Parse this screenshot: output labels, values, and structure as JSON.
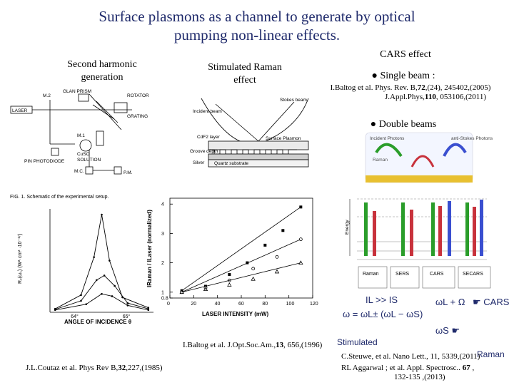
{
  "title": {
    "line1": "Surface  plasmons as a channel to  generate by optical",
    "line2": "pumping non-linear  effects."
  },
  "sections": {
    "shg_line1": "Second harmonic",
    "shg_line2": "generation",
    "raman_line1": "Stimulated Raman",
    "raman_line2": "effect",
    "cars": "CARS  effect",
    "single_beam": "● Single beam :",
    "double_beams": "● Double beams"
  },
  "refs": {
    "cars_ref_a": "I.Baltog et al. Phys. Rev. B,",
    "cars_ref_vol1": "72",
    "cars_ref_b": ",(24), 245402,(2005)",
    "cars_ref_c": "J.Appl.Phys,",
    "cars_ref_vol2": "110",
    "cars_ref_d": ", 053106,(2011)",
    "raman_ref_a": "I.Baltog et al. J.Opt.Soc.Am.,",
    "raman_ref_vol": "13",
    "raman_ref_b": ", 656,(1996)",
    "shg_ref_a": "J.L.Coutaz et al. Phys Rev B,",
    "shg_ref_vol": "32",
    "shg_ref_b": ",227,(1985)",
    "steuwe": "C.Steuwe, et al. Nano Lett., 11, 5339,(2011)",
    "aggarwal_a": "RL Aggarwal ; et al. Appl. Spectrosc.. ",
    "aggarwal_vol": "67",
    "aggarwal_b": " ,",
    "aggarwal_c": "132-135  ,(2013)"
  },
  "equations": {
    "il_is": "IL >> IS",
    "omega": "ω = ωL± (ωL − ωS)",
    "wl_plus": "ωL + Ω",
    "cars_label": "CARS",
    "ws": "ωS",
    "stimulated": "Stimulated",
    "raman": "Raman"
  },
  "schematic": {
    "glan_prism": "GLAN PRISM",
    "rotator": "ROTATOR",
    "grating": "GRATING",
    "laser": "LASER",
    "m2": "M.2",
    "m1": "M.1",
    "cuso4_a": "CuSO",
    "cuso4_b": "SOLUTION",
    "pin": "PIN PHOTODIODE",
    "mc": "M.C.",
    "pm": "P.M.",
    "caption": "FIG. 1.  Schematic of the experimental setup."
  },
  "raman_diagram": {
    "stokes": "Stokes beam",
    "incident": "Incident beam",
    "cdf2": "CdF2 layer",
    "surface_plasmon": "Surface Plasmon",
    "groove": "Groove depth",
    "silver": "Silver",
    "quartz": "Quartz substrate"
  },
  "energy_diagram": {
    "incident_photons": "Incident Photons",
    "anti_stokes": "anti-Stokes Photons",
    "raman_label": "Raman",
    "energy": "Energy",
    "sers": "SERS",
    "cars": "CARS",
    "secars": "SECARS",
    "raman_bottom": "Raman"
  },
  "chart_data": [
    {
      "type": "line",
      "title": "",
      "xlabel": "ANGLE OF INCIDENCE θ",
      "ylabel": "R₂(ω₁) (W²·cm² ·10⁻¹⁷)",
      "x_ticks": [
        "64°",
        "65°"
      ],
      "series": [
        {
          "values": [
            [
              63.6,
              0.3
            ],
            [
              64.1,
              1.5
            ],
            [
              64.35,
              4.8
            ],
            [
              64.5,
              8.5
            ],
            [
              64.65,
              4.5
            ],
            [
              64.9,
              1.3
            ],
            [
              65.4,
              0.4
            ]
          ]
        },
        {
          "values": [
            [
              63.6,
              0.25
            ],
            [
              64.1,
              1.0
            ],
            [
              64.4,
              2.8
            ],
            [
              64.55,
              3.2
            ],
            [
              64.75,
              2.3
            ],
            [
              65.0,
              0.8
            ],
            [
              65.4,
              0.3
            ]
          ]
        },
        {
          "values": [
            [
              63.6,
              0.2
            ],
            [
              64.2,
              0.7
            ],
            [
              64.5,
              1.6
            ],
            [
              64.7,
              1.4
            ],
            [
              65.0,
              0.6
            ],
            [
              65.4,
              0.2
            ]
          ]
        }
      ]
    },
    {
      "type": "scatter",
      "title": "",
      "xlabel": "LASER INTENSITY (mW)",
      "ylabel": "IRaman / ILaser (normalized)",
      "xlim": [
        0,
        120
      ],
      "ylim": [
        0.8,
        4.2
      ],
      "x_ticks": [
        "0",
        "20",
        "40",
        "60",
        "80",
        "100",
        "120"
      ],
      "y_ticks": [
        "0.8",
        "1",
        "2",
        "3",
        "4"
      ],
      "series": [
        {
          "marker": "square",
          "points": [
            [
              10,
              1.05
            ],
            [
              30,
              1.2
            ],
            [
              50,
              1.6
            ],
            [
              65,
              2.0
            ],
            [
              80,
              2.6
            ],
            [
              95,
              3.1
            ],
            [
              110,
              3.9
            ]
          ]
        },
        {
          "marker": "circle",
          "points": [
            [
              10,
              1.0
            ],
            [
              30,
              1.15
            ],
            [
              50,
              1.4
            ],
            [
              70,
              1.8
            ],
            [
              90,
              2.2
            ],
            [
              110,
              2.8
            ]
          ]
        },
        {
          "marker": "triangle",
          "points": [
            [
              10,
              1.0
            ],
            [
              30,
              1.1
            ],
            [
              50,
              1.25
            ],
            [
              70,
              1.45
            ],
            [
              90,
              1.7
            ],
            [
              110,
              2.0
            ]
          ]
        }
      ]
    }
  ]
}
